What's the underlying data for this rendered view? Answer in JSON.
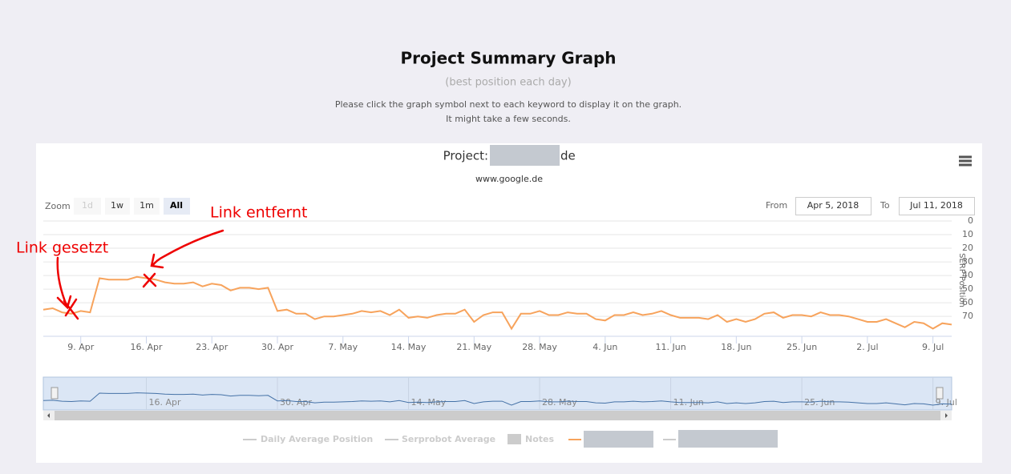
{
  "header": {
    "title": "Project Summary Graph",
    "subtitle": "(best position each day)",
    "instructions": [
      "Please click the graph symbol next to each keyword to display it on the graph.",
      "It might take a few seconds."
    ]
  },
  "controls": {
    "zoom_label": "Zoom",
    "zoom_buttons": [
      "1d",
      "1w",
      "1m",
      "All"
    ],
    "from_label": "From",
    "from": "Apr 5, 2018",
    "to_label": "To",
    "to": "Jul 11, 2018"
  },
  "legend": [
    "Daily Average Position",
    "Serprobot Average",
    "Notes"
  ],
  "chart_data": {
    "type": "line",
    "title_prefix": "Project:",
    "title_suffix": "de",
    "subtitle": "www.google.de",
    "y_label": "SERP Position",
    "x": [
      "2018-04-05",
      "2018-04-06",
      "2018-04-07",
      "2018-04-08",
      "2018-04-09",
      "2018-04-10",
      "2018-04-11",
      "2018-04-12",
      "2018-04-13",
      "2018-04-14",
      "2018-04-15",
      "2018-04-16",
      "2018-04-17",
      "2018-04-18",
      "2018-04-19",
      "2018-04-20",
      "2018-04-21",
      "2018-04-22",
      "2018-04-23",
      "2018-04-24",
      "2018-04-25",
      "2018-04-26",
      "2018-04-27",
      "2018-04-28",
      "2018-04-29",
      "2018-04-30",
      "2018-05-01",
      "2018-05-02",
      "2018-05-03",
      "2018-05-04",
      "2018-05-05",
      "2018-05-06",
      "2018-05-07",
      "2018-05-08",
      "2018-05-09",
      "2018-05-10",
      "2018-05-11",
      "2018-05-12",
      "2018-05-13",
      "2018-05-14",
      "2018-05-15",
      "2018-05-16",
      "2018-05-17",
      "2018-05-18",
      "2018-05-19",
      "2018-05-20",
      "2018-05-21",
      "2018-05-22",
      "2018-05-23",
      "2018-05-24",
      "2018-05-25",
      "2018-05-26",
      "2018-05-27",
      "2018-05-28",
      "2018-05-29",
      "2018-05-30",
      "2018-05-31",
      "2018-06-01",
      "2018-06-02",
      "2018-06-03",
      "2018-06-04",
      "2018-06-05",
      "2018-06-06",
      "2018-06-07",
      "2018-06-08",
      "2018-06-09",
      "2018-06-10",
      "2018-06-11",
      "2018-06-12",
      "2018-06-13",
      "2018-06-14",
      "2018-06-15",
      "2018-06-16",
      "2018-06-17",
      "2018-06-18",
      "2018-06-19",
      "2018-06-20",
      "2018-06-21",
      "2018-06-22",
      "2018-06-23",
      "2018-06-24",
      "2018-06-25",
      "2018-06-26",
      "2018-06-27",
      "2018-06-28",
      "2018-06-29",
      "2018-06-30",
      "2018-07-01",
      "2018-07-02",
      "2018-07-03",
      "2018-07-04",
      "2018-07-05",
      "2018-07-06",
      "2018-07-07",
      "2018-07-08",
      "2018-07-09",
      "2018-07-10",
      "2018-07-11"
    ],
    "series": [
      {
        "color": "#f7a35c",
        "values": [
          65,
          64,
          67,
          68,
          66,
          67,
          42,
          43,
          43,
          43,
          41,
          42,
          43,
          45,
          46,
          46,
          45,
          48,
          46,
          47,
          51,
          49,
          49,
          50,
          49,
          66,
          65,
          68,
          68,
          72,
          70,
          70,
          69,
          68,
          66,
          67,
          66,
          69,
          65,
          71,
          70,
          71,
          69,
          68,
          68,
          65,
          74,
          69,
          67,
          67,
          79,
          68,
          68,
          66,
          69,
          69,
          67,
          68,
          68,
          72,
          73,
          69,
          69,
          67,
          69,
          68,
          66,
          69,
          71,
          71,
          71,
          72,
          69,
          74,
          72,
          74,
          72,
          68,
          67,
          71,
          69,
          69,
          70,
          67,
          69,
          69,
          70,
          72,
          74,
          74,
          72,
          75,
          78,
          74,
          75,
          79,
          75,
          76
        ]
      }
    ],
    "xlim": [
      "2018-04-05",
      "2018-07-11"
    ],
    "xticks": [
      {
        "value": "2018-04-09",
        "label": "9. Apr"
      },
      {
        "value": "2018-04-16",
        "label": "16. Apr"
      },
      {
        "value": "2018-04-23",
        "label": "23. Apr"
      },
      {
        "value": "2018-04-30",
        "label": "30. Apr"
      },
      {
        "value": "2018-05-07",
        "label": "7. May"
      },
      {
        "value": "2018-05-14",
        "label": "14. May"
      },
      {
        "value": "2018-05-21",
        "label": "21. May"
      },
      {
        "value": "2018-05-28",
        "label": "28. May"
      },
      {
        "value": "2018-06-04",
        "label": "4. Jun"
      },
      {
        "value": "2018-06-11",
        "label": "11. Jun"
      },
      {
        "value": "2018-06-18",
        "label": "18. Jun"
      },
      {
        "value": "2018-06-25",
        "label": "25. Jun"
      },
      {
        "value": "2018-07-02",
        "label": "2. Jul"
      },
      {
        "value": "2018-07-09",
        "label": "9. Jul"
      }
    ],
    "ylim": [
      0,
      84
    ],
    "yticks": [
      0,
      10,
      20,
      30,
      40,
      50,
      60,
      70
    ],
    "y_reversed": true,
    "grid": true,
    "annotations": [
      "Link gesetzt",
      "Link entfernt"
    ]
  }
}
